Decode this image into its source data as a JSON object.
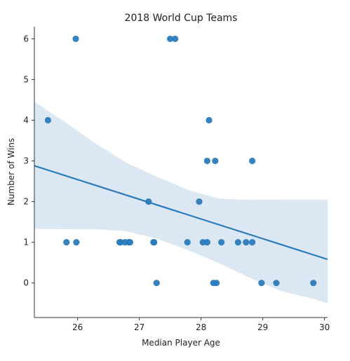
{
  "chart_data": {
    "type": "scatter",
    "title": "2018 World Cup Teams",
    "xlabel": "Median Player Age",
    "ylabel": "Number of Wins",
    "xlim": [
      25.3,
      30.05
    ],
    "ylim": [
      -0.85,
      6.3
    ],
    "xticks": [
      26,
      27,
      28,
      29,
      30
    ],
    "yticks": [
      0,
      1,
      2,
      3,
      4,
      5,
      6
    ],
    "grid": false,
    "legend": "none",
    "points": [
      {
        "x": 25.97,
        "y": 6
      },
      {
        "x": 27.5,
        "y": 6
      },
      {
        "x": 27.58,
        "y": 6
      },
      {
        "x": 25.52,
        "y": 4
      },
      {
        "x": 28.13,
        "y": 4
      },
      {
        "x": 28.1,
        "y": 3
      },
      {
        "x": 28.23,
        "y": 3
      },
      {
        "x": 28.83,
        "y": 3
      },
      {
        "x": 27.15,
        "y": 2
      },
      {
        "x": 27.97,
        "y": 2
      },
      {
        "x": 25.82,
        "y": 1
      },
      {
        "x": 25.98,
        "y": 1
      },
      {
        "x": 26.68,
        "y": 1
      },
      {
        "x": 26.7,
        "y": 1
      },
      {
        "x": 26.77,
        "y": 1
      },
      {
        "x": 26.83,
        "y": 1
      },
      {
        "x": 26.85,
        "y": 1
      },
      {
        "x": 27.23,
        "y": 1
      },
      {
        "x": 27.24,
        "y": 1
      },
      {
        "x": 27.78,
        "y": 1
      },
      {
        "x": 28.03,
        "y": 1
      },
      {
        "x": 28.1,
        "y": 1
      },
      {
        "x": 28.33,
        "y": 1
      },
      {
        "x": 28.6,
        "y": 1
      },
      {
        "x": 28.73,
        "y": 1
      },
      {
        "x": 28.83,
        "y": 1
      },
      {
        "x": 27.28,
        "y": 0
      },
      {
        "x": 28.2,
        "y": 0
      },
      {
        "x": 28.25,
        "y": 0
      },
      {
        "x": 28.98,
        "y": 0
      },
      {
        "x": 29.22,
        "y": 0
      },
      {
        "x": 29.82,
        "y": 0
      }
    ],
    "regression": {
      "x": [
        25.3,
        30.05
      ],
      "y": [
        2.88,
        0.58
      ]
    },
    "confidence_band": {
      "x": [
        25.3,
        25.8,
        26.3,
        26.8,
        27.3,
        27.8,
        28.3,
        28.8,
        29.3,
        29.8,
        30.05
      ],
      "upper": [
        4.45,
        3.95,
        3.42,
        2.95,
        2.6,
        2.28,
        2.07,
        2.04,
        2.05,
        2.05,
        2.05
      ],
      "lower": [
        1.33,
        1.32,
        1.32,
        1.27,
        1.08,
        0.8,
        0.48,
        0.12,
        -0.2,
        -0.38,
        -0.5
      ]
    },
    "colors": {
      "points": "#2b7bba",
      "line": "#2b7bba",
      "band": "#dbe8f4"
    }
  }
}
